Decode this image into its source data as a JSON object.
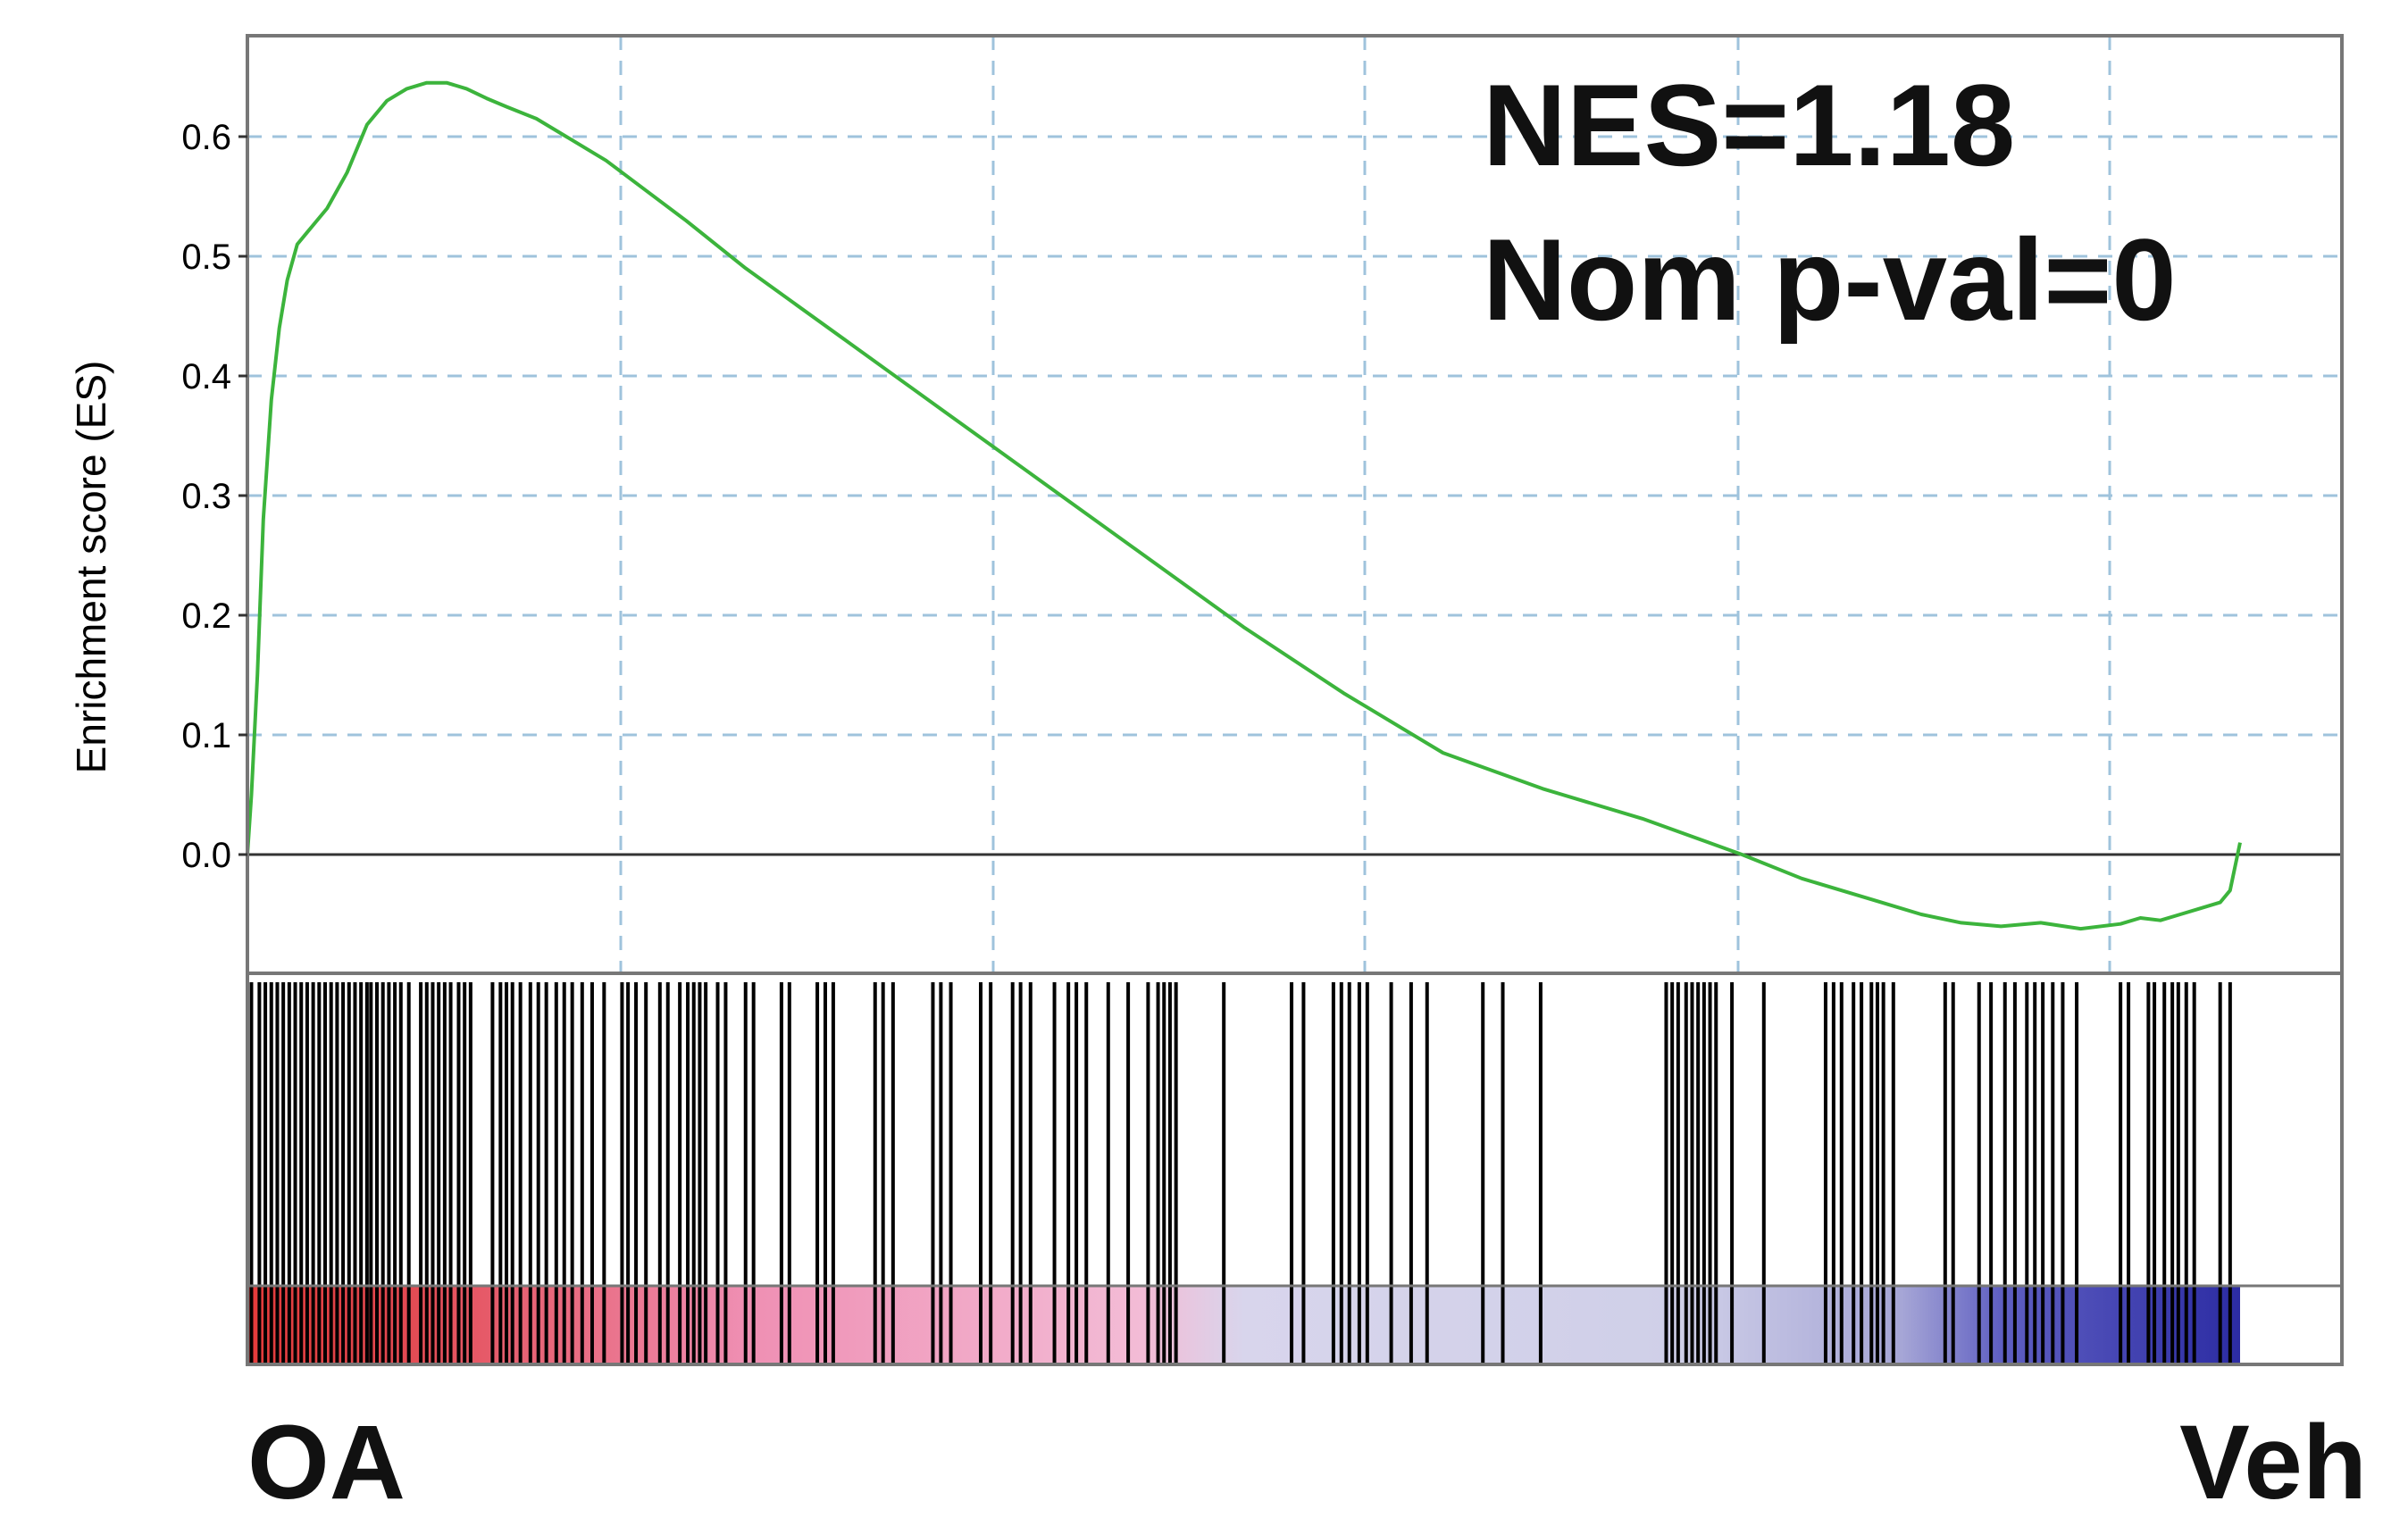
{
  "chart_data": {
    "type": "line",
    "title": "",
    "ylabel": "Enrichment score (ES)",
    "xlabel": "",
    "ylim": [
      -0.065,
      0.68
    ],
    "xlim": [
      0,
      1
    ],
    "y_ticks": [
      "0.0",
      "0.1",
      "0.2",
      "0.3",
      "0.4",
      "0.5",
      "0.6"
    ],
    "grid": true,
    "annotations": [
      "NES=1.18",
      "Nom p-val=0"
    ],
    "left_label": "OA",
    "right_label": "Veh",
    "series": [
      {
        "color": "#3cb43c",
        "x": [
          0,
          0.002,
          0.005,
          0.008,
          0.012,
          0.016,
          0.02,
          0.025,
          0.03,
          0.04,
          0.05,
          0.06,
          0.07,
          0.08,
          0.09,
          0.1,
          0.11,
          0.12,
          0.13,
          0.145,
          0.16,
          0.18,
          0.2,
          0.22,
          0.25,
          0.3,
          0.35,
          0.4,
          0.45,
          0.5,
          0.55,
          0.6,
          0.65,
          0.7,
          0.75,
          0.78,
          0.8,
          0.82,
          0.84,
          0.86,
          0.88,
          0.9,
          0.92,
          0.94,
          0.95,
          0.96,
          0.97,
          0.98,
          0.99,
          0.995,
          1.0
        ],
        "values": [
          0,
          0.05,
          0.15,
          0.28,
          0.38,
          0.44,
          0.48,
          0.51,
          0.52,
          0.54,
          0.57,
          0.61,
          0.63,
          0.64,
          0.645,
          0.645,
          0.64,
          0.632,
          0.625,
          0.615,
          0.6,
          0.58,
          0.555,
          0.53,
          0.49,
          0.43,
          0.37,
          0.31,
          0.25,
          0.19,
          0.135,
          0.085,
          0.055,
          0.03,
          0.0,
          -0.02,
          -0.03,
          -0.04,
          -0.05,
          -0.057,
          -0.06,
          -0.057,
          -0.062,
          -0.058,
          -0.053,
          -0.055,
          -0.05,
          -0.045,
          -0.04,
          -0.03,
          0.01
        ]
      }
    ],
    "hits": [
      0.002,
      0.006,
      0.009,
      0.012,
      0.015,
      0.018,
      0.021,
      0.024,
      0.027,
      0.03,
      0.033,
      0.036,
      0.039,
      0.042,
      0.045,
      0.048,
      0.051,
      0.054,
      0.057,
      0.06,
      0.062,
      0.065,
      0.068,
      0.071,
      0.074,
      0.077,
      0.081,
      0.087,
      0.09,
      0.093,
      0.096,
      0.099,
      0.102,
      0.106,
      0.109,
      0.112,
      0.123,
      0.127,
      0.13,
      0.133,
      0.137,
      0.142,
      0.146,
      0.15,
      0.155,
      0.159,
      0.163,
      0.168,
      0.173,
      0.179,
      0.188,
      0.191,
      0.195,
      0.2,
      0.207,
      0.211,
      0.217,
      0.221,
      0.224,
      0.227,
      0.23,
      0.236,
      0.24,
      0.25,
      0.254,
      0.268,
      0.272,
      0.286,
      0.29,
      0.294,
      0.315,
      0.319,
      0.324,
      0.344,
      0.348,
      0.353,
      0.368,
      0.373,
      0.384,
      0.388,
      0.393,
      0.405,
      0.412,
      0.416,
      0.421,
      0.432,
      0.442,
      0.452,
      0.457,
      0.46,
      0.463,
      0.466,
      0.49,
      0.524,
      0.53,
      0.545,
      0.549,
      0.553,
      0.558,
      0.562,
      0.574,
      0.584,
      0.592,
      0.62,
      0.63,
      0.649,
      0.712,
      0.715,
      0.718,
      0.722,
      0.725,
      0.728,
      0.731,
      0.734,
      0.737,
      0.745,
      0.761,
      0.792,
      0.796,
      0.8,
      0.806,
      0.81,
      0.815,
      0.818,
      0.821,
      0.826,
      0.852,
      0.856,
      0.869,
      0.875,
      0.882,
      0.887,
      0.893,
      0.897,
      0.901,
      0.906,
      0.911,
      0.918,
      0.94,
      0.944,
      0.954,
      0.957,
      0.962,
      0.966,
      0.969,
      0.973,
      0.977,
      0.99,
      0.995
    ]
  }
}
